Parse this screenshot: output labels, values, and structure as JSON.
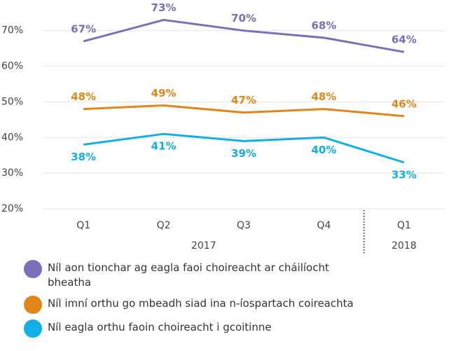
{
  "chart_data": {
    "type": "line",
    "categories": [
      "Q1",
      "Q2",
      "Q3",
      "Q4",
      "Q1"
    ],
    "x_groups": [
      {
        "label": "2017",
        "size": 4
      },
      {
        "label": "2018",
        "size": 1
      }
    ],
    "ylim": [
      20,
      78
    ],
    "yticks": [
      {
        "value": 20,
        "label": "20%"
      },
      {
        "value": 30,
        "label": "30%"
      },
      {
        "value": 40,
        "label": "40%"
      },
      {
        "value": 50,
        "label": "50%"
      },
      {
        "value": 60,
        "label": "60%"
      },
      {
        "value": 70,
        "label": "70%"
      }
    ],
    "grid": true,
    "series": [
      {
        "name": "Níl aon tionchar ag eagla faoi choireacht ar cháilíocht bheatha",
        "color": "#7b6fb8",
        "values": [
          67,
          73,
          70,
          68,
          64
        ],
        "value_labels": [
          "67%",
          "73%",
          "70%",
          "68%",
          "64%"
        ]
      },
      {
        "name": "Níl imní orthu go mbeadh siad ina n-íospartach coireachta",
        "color": "#e0861a",
        "values": [
          48,
          49,
          47,
          48,
          46
        ],
        "value_labels": [
          "48%",
          "49%",
          "47%",
          "48%",
          "46%"
        ]
      },
      {
        "name": "Níl eagla orthu faoin choireacht i gcoitinne",
        "color": "#12aee6",
        "values": [
          38,
          41,
          39,
          40,
          33
        ],
        "value_labels": [
          "38%",
          "41%",
          "39%",
          "40%",
          "33%"
        ]
      }
    ]
  }
}
